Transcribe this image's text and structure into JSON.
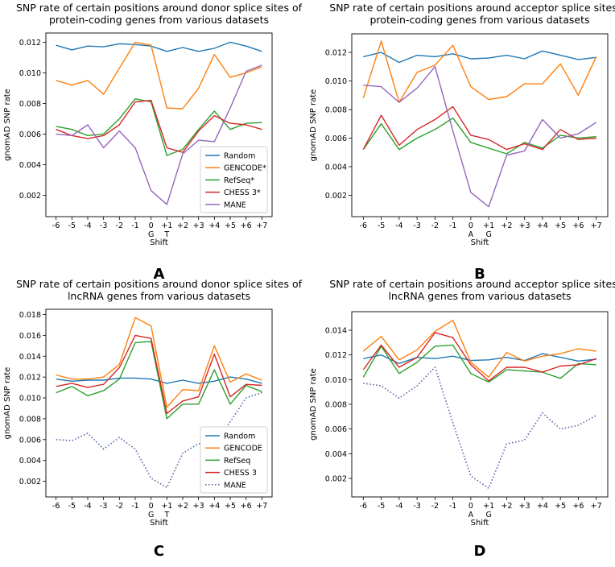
{
  "figure": {
    "panel_labels": [
      "A",
      "B",
      "C",
      "D"
    ]
  },
  "chart_data": [
    {
      "panel": "A",
      "type": "line",
      "title": [
        "SNP rate of certain positions around donor splice sites of",
        "protein-coding genes from various datasets"
      ],
      "xlabel": "Shift",
      "ylabel": "gnomAD SNP rate",
      "categories": [
        "-6",
        "-5",
        "-4",
        "-3",
        "-2",
        "-1",
        "0",
        "+1",
        "+2",
        "+3",
        "+4",
        "+5",
        "+6",
        "+7"
      ],
      "sub_labels": {
        "0": "G",
        "+1": "T"
      },
      "ylim": [
        0.0006,
        0.0126
      ],
      "yticks": [
        "0.002",
        "0.004",
        "0.006",
        "0.008",
        "0.010",
        "0.012"
      ],
      "legend_position": "lower-right",
      "series": [
        {
          "name": "Random",
          "color": "#1f77b4",
          "style": "solid",
          "values": [
            0.0118,
            0.0115,
            0.01175,
            0.0117,
            0.0119,
            0.01185,
            0.01175,
            0.0114,
            0.01165,
            0.0114,
            0.0116,
            0.012,
            0.01175,
            0.0114
          ]
        },
        {
          "name": "GENCODE*",
          "color": "#ff7f0e",
          "style": "solid",
          "values": [
            0.0095,
            0.0092,
            0.0095,
            0.0086,
            0.0103,
            0.012,
            0.0118,
            0.0077,
            0.00765,
            0.009,
            0.0112,
            0.0097,
            0.01,
            0.0104
          ]
        },
        {
          "name": "RefSeq*",
          "color": "#2ca02c",
          "style": "solid",
          "values": [
            0.0065,
            0.0063,
            0.0059,
            0.006,
            0.007,
            0.0083,
            0.0081,
            0.0046,
            0.005,
            0.0063,
            0.0075,
            0.0063,
            0.0067,
            0.00675
          ]
        },
        {
          "name": "CHESS 3*",
          "color": "#d62728",
          "style": "solid",
          "values": [
            0.0063,
            0.0059,
            0.0057,
            0.0059,
            0.0066,
            0.0081,
            0.0082,
            0.0051,
            0.0048,
            0.0062,
            0.0072,
            0.0067,
            0.0066,
            0.0063
          ]
        },
        {
          "name": "MANE",
          "color": "#9467bd",
          "style": "solid",
          "values": [
            0.006,
            0.0059,
            0.0066,
            0.0051,
            0.0062,
            0.0051,
            0.0023,
            0.0014,
            0.0047,
            0.0056,
            0.0055,
            0.0077,
            0.0101,
            0.0105
          ]
        }
      ]
    },
    {
      "panel": "B",
      "type": "line",
      "title": [
        "SNP rate of certain positions around acceptor splice sites of",
        "protein-coding genes from various datasets"
      ],
      "xlabel": "Shift",
      "ylabel": "gnomAD SNP rate",
      "categories": [
        "-6",
        "-5",
        "-4",
        "-3",
        "-2",
        "-1",
        "0",
        "+1",
        "+2",
        "+3",
        "+4",
        "+5",
        "+6",
        "+7"
      ],
      "sub_labels": {
        "0": "A",
        "+1": "G"
      },
      "ylim": [
        0.0005,
        0.0133
      ],
      "yticks": [
        "0.002",
        "0.004",
        "0.006",
        "0.008",
        "0.010",
        "0.012"
      ],
      "legend_position": "none",
      "series": [
        {
          "name": "Random",
          "color": "#1f77b4",
          "style": "solid",
          "values": [
            0.0117,
            0.012,
            0.0113,
            0.0118,
            0.0117,
            0.0119,
            0.01155,
            0.0116,
            0.0118,
            0.01155,
            0.0121,
            0.0118,
            0.0115,
            0.01165
          ]
        },
        {
          "name": "GENCODE*",
          "color": "#ff7f0e",
          "style": "solid",
          "values": [
            0.0088,
            0.0128,
            0.0085,
            0.0106,
            0.0111,
            0.0125,
            0.0096,
            0.0087,
            0.0089,
            0.0098,
            0.0098,
            0.0112,
            0.009,
            0.0117
          ]
        },
        {
          "name": "RefSeq*",
          "color": "#2ca02c",
          "style": "solid",
          "values": [
            0.0052,
            0.007,
            0.0052,
            0.006,
            0.0066,
            0.0074,
            0.0057,
            0.0053,
            0.0049,
            0.0057,
            0.0053,
            0.0062,
            0.006,
            0.0061
          ]
        },
        {
          "name": "CHESS 3*",
          "color": "#d62728",
          "style": "solid",
          "values": [
            0.0052,
            0.0076,
            0.0055,
            0.0066,
            0.0073,
            0.0082,
            0.0062,
            0.0059,
            0.0052,
            0.0056,
            0.0052,
            0.0066,
            0.0059,
            0.006
          ]
        },
        {
          "name": "MANE",
          "color": "#9467bd",
          "style": "solid",
          "values": [
            0.0097,
            0.0096,
            0.0085,
            0.0095,
            0.011,
            0.0065,
            0.0022,
            0.0012,
            0.0048,
            0.0051,
            0.0073,
            0.006,
            0.0063,
            0.0071
          ]
        }
      ]
    },
    {
      "panel": "C",
      "type": "line",
      "title": [
        "SNP rate of certain positions around donor splice sites of",
        "lncRNA genes from various datasets"
      ],
      "xlabel": "Shift",
      "ylabel": "gnomAD SNP rate",
      "categories": [
        "-6",
        "-5",
        "-4",
        "-3",
        "-2",
        "-1",
        "0",
        "+1",
        "+2",
        "+3",
        "+4",
        "+5",
        "+6",
        "+7"
      ],
      "sub_labels": {
        "0": "G",
        "+1": "T"
      },
      "ylim": [
        0.0005,
        0.0185
      ],
      "yticks": [
        "0.002",
        "0.004",
        "0.006",
        "0.008",
        "0.010",
        "0.012",
        "0.014",
        "0.016",
        "0.018"
      ],
      "legend_position": "lower-right",
      "series": [
        {
          "name": "Random",
          "color": "#1f77b4",
          "style": "solid",
          "values": [
            0.0118,
            0.0116,
            0.0117,
            0.0117,
            0.0119,
            0.0119,
            0.0118,
            0.0114,
            0.0117,
            0.0114,
            0.0116,
            0.012,
            0.0118,
            0.0114
          ]
        },
        {
          "name": "GENCODE",
          "color": "#ff7f0e",
          "style": "solid",
          "values": [
            0.0122,
            0.0118,
            0.0118,
            0.012,
            0.0132,
            0.0177,
            0.0169,
            0.0091,
            0.0108,
            0.0107,
            0.015,
            0.0115,
            0.0123,
            0.0117
          ]
        },
        {
          "name": "RefSeq",
          "color": "#2ca02c",
          "style": "solid",
          "values": [
            0.0105,
            0.0111,
            0.0102,
            0.0107,
            0.0118,
            0.0153,
            0.0154,
            0.008,
            0.0094,
            0.0094,
            0.0127,
            0.0094,
            0.0112,
            0.0106
          ]
        },
        {
          "name": "CHESS 3",
          "color": "#d62728",
          "style": "solid",
          "values": [
            0.0111,
            0.0114,
            0.011,
            0.0113,
            0.0129,
            0.016,
            0.0157,
            0.0085,
            0.0097,
            0.0101,
            0.0142,
            0.0101,
            0.0113,
            0.0112
          ]
        },
        {
          "name": "MANE",
          "color": "#5560a8",
          "style": "dotted",
          "values": [
            0.006,
            0.0059,
            0.0066,
            0.0051,
            0.0062,
            0.0051,
            0.0023,
            0.0014,
            0.0047,
            0.0056,
            0.0056,
            0.0077,
            0.01,
            0.0105
          ]
        }
      ]
    },
    {
      "panel": "D",
      "type": "line",
      "title": [
        "SNP rate of certain positions around acceptor splice sites of",
        "lncRNA genes from various datasets"
      ],
      "xlabel": "Shift",
      "ylabel": "gnomAD SNP rate",
      "categories": [
        "-6",
        "-5",
        "-4",
        "-3",
        "-2",
        "-1",
        "0",
        "+1",
        "+2",
        "+3",
        "+4",
        "+5",
        "+6",
        "+7"
      ],
      "sub_labels": {
        "0": "A",
        "+1": "G"
      },
      "ylim": [
        0.0005,
        0.0155
      ],
      "yticks": [
        "0.002",
        "0.004",
        "0.006",
        "0.008",
        "0.010",
        "0.012",
        "0.014"
      ],
      "legend_position": "none",
      "series": [
        {
          "name": "Random",
          "color": "#1f77b4",
          "style": "solid",
          "values": [
            0.0117,
            0.012,
            0.0113,
            0.0118,
            0.0117,
            0.0119,
            0.01155,
            0.0116,
            0.0118,
            0.01155,
            0.0121,
            0.0118,
            0.0115,
            0.01165
          ]
        },
        {
          "name": "GENCODE",
          "color": "#ff7f0e",
          "style": "solid",
          "values": [
            0.0123,
            0.0135,
            0.0116,
            0.0124,
            0.0139,
            0.0148,
            0.0114,
            0.0102,
            0.0122,
            0.0115,
            0.0119,
            0.0121,
            0.0125,
            0.0123
          ]
        },
        {
          "name": "RefSeq",
          "color": "#2ca02c",
          "style": "solid",
          "values": [
            0.0102,
            0.0127,
            0.0105,
            0.0114,
            0.0127,
            0.0128,
            0.0105,
            0.0098,
            0.0108,
            0.0107,
            0.0106,
            0.0101,
            0.0113,
            0.0112
          ]
        },
        {
          "name": "CHESS 3",
          "color": "#d62728",
          "style": "solid",
          "values": [
            0.0108,
            0.0128,
            0.011,
            0.0118,
            0.0138,
            0.0134,
            0.0112,
            0.0099,
            0.011,
            0.011,
            0.0106,
            0.0111,
            0.0112,
            0.0117
          ]
        },
        {
          "name": "MANE",
          "color": "#5560a8",
          "style": "dotted",
          "values": [
            0.0097,
            0.0095,
            0.0085,
            0.0095,
            0.011,
            0.0065,
            0.0022,
            0.0012,
            0.0048,
            0.0051,
            0.0073,
            0.006,
            0.0063,
            0.0071
          ]
        }
      ]
    }
  ]
}
